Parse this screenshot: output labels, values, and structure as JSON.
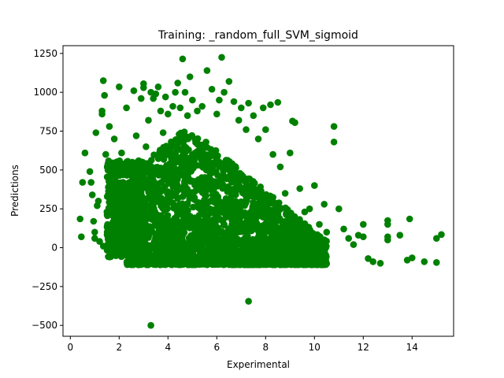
{
  "chart_data": {
    "type": "scatter",
    "title": "Training: _random_full_SVM_sigmoid",
    "xlabel": "Experimental",
    "ylabel": "Predictions",
    "xlim": [
      -0.3,
      15.7
    ],
    "ylim": [
      -570,
      1300
    ],
    "xticks": [
      0,
      2,
      4,
      6,
      8,
      10,
      12,
      14
    ],
    "yticks": [
      -500,
      -250,
      0,
      250,
      500,
      750,
      1000,
      1250
    ],
    "ytick_labels": [
      "−500",
      "−250",
      "0",
      "250",
      "500",
      "750",
      "1000",
      "1250"
    ],
    "grid": false,
    "marker_color": "#008000",
    "series": [
      {
        "points": [
          [
            0.4,
            185
          ],
          [
            0.45,
            70
          ],
          [
            0.5,
            420
          ],
          [
            0.6,
            610
          ],
          [
            0.8,
            490
          ],
          [
            0.85,
            420
          ],
          [
            0.9,
            340
          ],
          [
            0.95,
            170
          ],
          [
            1.0,
            100
          ],
          [
            1.0,
            60
          ],
          [
            1.05,
            740
          ],
          [
            1.1,
            270
          ],
          [
            1.15,
            300
          ],
          [
            1.2,
            40
          ],
          [
            1.3,
            860
          ],
          [
            1.3,
            880
          ],
          [
            1.35,
            1075
          ],
          [
            1.4,
            980
          ],
          [
            1.35,
            10
          ],
          [
            1.45,
            600
          ],
          [
            1.5,
            230
          ],
          [
            1.6,
            780
          ],
          [
            1.7,
            120
          ],
          [
            1.8,
            700
          ],
          [
            1.9,
            400
          ],
          [
            2.0,
            1035
          ],
          [
            2.1,
            610
          ],
          [
            2.2,
            480
          ],
          [
            2.3,
            900
          ],
          [
            2.4,
            300
          ],
          [
            2.5,
            150
          ],
          [
            2.6,
            1010
          ],
          [
            2.7,
            720
          ],
          [
            2.8,
            560
          ],
          [
            2.9,
            960
          ],
          [
            3.0,
            1055
          ],
          [
            3.0,
            1030
          ],
          [
            3.1,
            650
          ],
          [
            3.2,
            820
          ],
          [
            3.3,
            1000
          ],
          [
            3.3,
            -500
          ],
          [
            3.4,
            960
          ],
          [
            3.5,
            990
          ],
          [
            3.6,
            1035
          ],
          [
            3.7,
            880
          ],
          [
            3.8,
            740
          ],
          [
            3.9,
            970
          ],
          [
            4.0,
            860
          ],
          [
            4.1,
            620
          ],
          [
            4.2,
            910
          ],
          [
            4.3,
            1000
          ],
          [
            4.4,
            1060
          ],
          [
            4.5,
            900
          ],
          [
            4.6,
            1215
          ],
          [
            4.7,
            1000
          ],
          [
            4.8,
            850
          ],
          [
            4.9,
            1100
          ],
          [
            5.0,
            950
          ],
          [
            5.1,
            700
          ],
          [
            5.2,
            880
          ],
          [
            5.4,
            910
          ],
          [
            5.6,
            1140
          ],
          [
            5.8,
            1020
          ],
          [
            6.0,
            860
          ],
          [
            6.1,
            950
          ],
          [
            6.2,
            1225
          ],
          [
            6.3,
            1000
          ],
          [
            6.5,
            1070
          ],
          [
            6.7,
            940
          ],
          [
            6.9,
            820
          ],
          [
            7.0,
            900
          ],
          [
            7.2,
            760
          ],
          [
            7.3,
            930
          ],
          [
            7.3,
            -345
          ],
          [
            7.5,
            850
          ],
          [
            7.7,
            700
          ],
          [
            7.9,
            900
          ],
          [
            8.0,
            760
          ],
          [
            8.2,
            920
          ],
          [
            8.3,
            600
          ],
          [
            8.5,
            935
          ],
          [
            8.6,
            520
          ],
          [
            8.8,
            350
          ],
          [
            9.0,
            610
          ],
          [
            9.1,
            815
          ],
          [
            9.2,
            805
          ],
          [
            9.4,
            380
          ],
          [
            9.6,
            230
          ],
          [
            9.8,
            250
          ],
          [
            10.0,
            400
          ],
          [
            10.0,
            60
          ],
          [
            10.2,
            150
          ],
          [
            10.4,
            280
          ],
          [
            10.5,
            100
          ],
          [
            10.8,
            780
          ],
          [
            10.8,
            680
          ],
          [
            11.0,
            250
          ],
          [
            11.2,
            120
          ],
          [
            11.4,
            60
          ],
          [
            11.6,
            20
          ],
          [
            11.8,
            80
          ],
          [
            12.0,
            150
          ],
          [
            12.0,
            70
          ],
          [
            12.2,
            -70
          ],
          [
            12.4,
            -90
          ],
          [
            12.7,
            -100
          ],
          [
            13.0,
            175
          ],
          [
            13.0,
            150
          ],
          [
            13.0,
            70
          ],
          [
            13.0,
            50
          ],
          [
            13.5,
            80
          ],
          [
            13.8,
            -80
          ],
          [
            13.9,
            185
          ],
          [
            14.0,
            -65
          ],
          [
            14.5,
            -90
          ],
          [
            15.0,
            60
          ],
          [
            15.0,
            -95
          ],
          [
            15.2,
            85
          ]
        ]
      }
    ]
  }
}
